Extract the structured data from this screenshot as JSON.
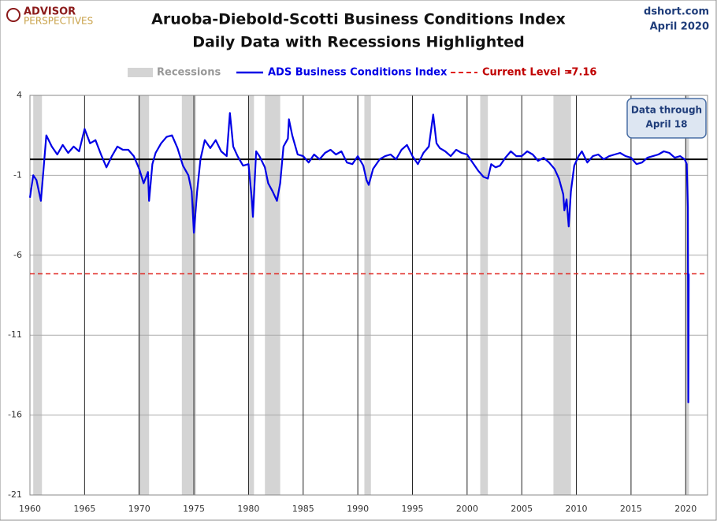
{
  "chart_data": {
    "type": "line",
    "title": "Aruoba-Diebold-Scotti Business Conditions Index",
    "subtitle": "Daily Data with Recessions Highlighted",
    "logo": {
      "top": "ADVISOR",
      "bottom": "PERSPECTIVES"
    },
    "source": "dshort.com",
    "date": "April 2020",
    "annotation": {
      "line1": "Data through",
      "line2": "April 18"
    },
    "xlim": [
      1960,
      2022
    ],
    "xticks": [
      1960,
      1965,
      1970,
      1975,
      1980,
      1985,
      1990,
      1995,
      2000,
      2005,
      2010,
      2015,
      2020
    ],
    "ylim": [
      -21,
      4
    ],
    "yticks": [
      4,
      -1,
      -6,
      -11,
      -16,
      -21
    ],
    "grid": true,
    "recessions": {
      "name": "Recessions",
      "color": "#d4d4d4",
      "periods": [
        [
          1960.3,
          1961.1
        ],
        [
          1969.9,
          1970.9
        ],
        [
          1973.9,
          1975.2
        ],
        [
          1980.0,
          1980.5
        ],
        [
          1981.5,
          1982.9
        ],
        [
          1990.6,
          1991.2
        ],
        [
          2001.2,
          2001.9
        ],
        [
          2007.9,
          2009.5
        ],
        [
          2020.0,
          2020.3
        ]
      ]
    },
    "current_level": {
      "label": "Current Level =",
      "value": -7.16,
      "color": "#e0201b"
    },
    "x": [
      1960.0,
      1960.3,
      1960.6,
      1961.0,
      1961.5,
      1962.0,
      1962.5,
      1963.0,
      1963.5,
      1964.0,
      1964.5,
      1965.0,
      1965.5,
      1966.0,
      1966.5,
      1967.0,
      1967.5,
      1968.0,
      1968.5,
      1969.0,
      1969.5,
      1970.0,
      1970.4,
      1970.8,
      1970.9,
      1971.2,
      1971.5,
      1972.0,
      1972.5,
      1973.0,
      1973.5,
      1974.0,
      1974.5,
      1974.8,
      1975.0,
      1975.3,
      1975.6,
      1976.0,
      1976.5,
      1977.0,
      1977.5,
      1978.0,
      1978.3,
      1978.6,
      1979.0,
      1979.5,
      1980.0,
      1980.3,
      1980.4,
      1980.7,
      1981.0,
      1981.5,
      1981.8,
      1982.2,
      1982.6,
      1982.9,
      1983.2,
      1983.6,
      1983.7,
      1984.0,
      1984.5,
      1985.0,
      1985.5,
      1986.0,
      1986.5,
      1987.0,
      1987.5,
      1988.0,
      1988.5,
      1989.0,
      1989.5,
      1990.0,
      1990.5,
      1990.8,
      1991.0,
      1991.4,
      1992.0,
      1992.5,
      1993.0,
      1993.5,
      1994.0,
      1994.5,
      1995.0,
      1995.5,
      1996.0,
      1996.5,
      1996.9,
      1997.2,
      1997.5,
      1998.0,
      1998.5,
      1999.0,
      1999.5,
      2000.0,
      2000.5,
      2001.0,
      2001.5,
      2001.9,
      2002.2,
      2002.6,
      2003.0,
      2003.5,
      2004.0,
      2004.5,
      2005.0,
      2005.5,
      2006.0,
      2006.5,
      2007.0,
      2007.5,
      2008.0,
      2008.4,
      2008.8,
      2008.9,
      2009.1,
      2009.3,
      2009.5,
      2009.8,
      2010.2,
      2010.5,
      2011.0,
      2011.5,
      2012.0,
      2012.5,
      2013.0,
      2013.5,
      2014.0,
      2014.5,
      2015.0,
      2015.5,
      2016.0,
      2016.5,
      2017.0,
      2017.5,
      2018.0,
      2018.5,
      2019.0,
      2019.5,
      2019.9,
      2020.1,
      2020.2,
      2020.24,
      2020.28
    ],
    "series": [
      {
        "name": "ADS Business Conditions Index",
        "color": "#0000e6",
        "values": [
          -2.4,
          -1.0,
          -1.3,
          -2.6,
          1.5,
          0.8,
          0.3,
          0.9,
          0.4,
          0.8,
          0.5,
          1.9,
          1.0,
          1.2,
          0.3,
          -0.5,
          0.2,
          0.8,
          0.6,
          0.6,
          0.2,
          -0.6,
          -1.5,
          -0.8,
          -2.6,
          -0.3,
          0.4,
          1.0,
          1.4,
          1.5,
          0.7,
          -0.4,
          -1.0,
          -2.0,
          -4.6,
          -2.0,
          0.0,
          1.2,
          0.7,
          1.2,
          0.5,
          0.2,
          2.9,
          0.8,
          0.2,
          -0.4,
          -0.3,
          -2.5,
          -3.6,
          0.5,
          0.2,
          -0.5,
          -1.5,
          -2.0,
          -2.6,
          -1.5,
          0.8,
          1.3,
          2.5,
          1.5,
          0.3,
          0.2,
          -0.2,
          0.3,
          0.0,
          0.4,
          0.6,
          0.3,
          0.5,
          -0.2,
          -0.3,
          0.2,
          -0.4,
          -1.3,
          -1.6,
          -0.6,
          0.0,
          0.2,
          0.3,
          0.0,
          0.6,
          0.9,
          0.2,
          -0.3,
          0.4,
          0.8,
          2.8,
          1.0,
          0.7,
          0.5,
          0.2,
          0.6,
          0.4,
          0.3,
          -0.2,
          -0.7,
          -1.1,
          -1.2,
          -0.3,
          -0.5,
          -0.4,
          0.1,
          0.5,
          0.2,
          0.2,
          0.5,
          0.3,
          -0.1,
          0.1,
          -0.2,
          -0.6,
          -1.2,
          -2.2,
          -3.2,
          -2.5,
          -4.2,
          -2.0,
          -0.4,
          0.2,
          0.5,
          -0.2,
          0.2,
          0.3,
          0.0,
          0.2,
          0.3,
          0.4,
          0.2,
          0.1,
          -0.3,
          -0.2,
          0.1,
          0.2,
          0.3,
          0.5,
          0.4,
          0.1,
          0.2,
          0.0,
          -0.3,
          -3.0,
          -15.2,
          -7.16
        ]
      }
    ]
  }
}
